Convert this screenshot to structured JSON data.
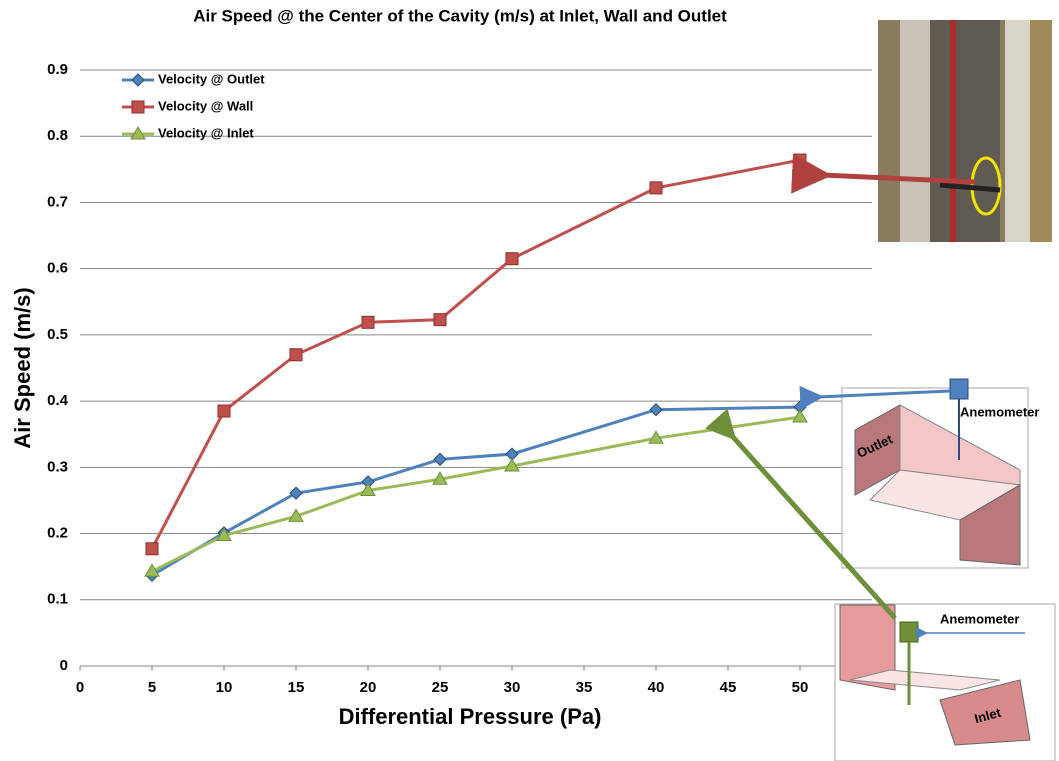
{
  "chart_data": {
    "type": "line",
    "title": "Air Speed @ the Center of the Cavity (m/s) at Inlet, Wall and Outlet",
    "x_label": "Differential Pressure (Pa)",
    "y_label": "Air Speed (m/s)",
    "x": [
      5,
      10,
      15,
      20,
      25,
      30,
      40,
      50
    ],
    "series": [
      {
        "name": "Velocity @ Outlet",
        "color": "#4f81bd",
        "marker": "diamond",
        "values": [
          0.137,
          0.201,
          0.261,
          0.278,
          0.312,
          0.32,
          0.387,
          0.391
        ]
      },
      {
        "name": "Velocity @ Wall",
        "color": "#c0504d",
        "marker": "square",
        "values": [
          0.177,
          0.385,
          0.47,
          0.519,
          0.523,
          0.615,
          0.722,
          0.764
        ]
      },
      {
        "name": "Velocity @ Inlet",
        "color": "#9bbb59",
        "marker": "triangle",
        "values": [
          0.143,
          0.197,
          0.226,
          0.265,
          0.282,
          0.302,
          0.344,
          0.376
        ]
      }
    ],
    "xlim": [
      0,
      55
    ],
    "xticks": [
      0,
      5,
      10,
      15,
      20,
      25,
      30,
      35,
      40,
      45,
      50
    ],
    "ylim": [
      0,
      0.9
    ],
    "yticks": [
      0,
      0.1,
      0.2,
      0.3,
      0.4,
      0.5,
      0.6,
      0.7,
      0.8,
      0.9
    ],
    "grid": true,
    "legend": "top-left",
    "annotations": [
      "Anemometer",
      "Outlet",
      "Anemometer",
      "Inlet"
    ]
  }
}
